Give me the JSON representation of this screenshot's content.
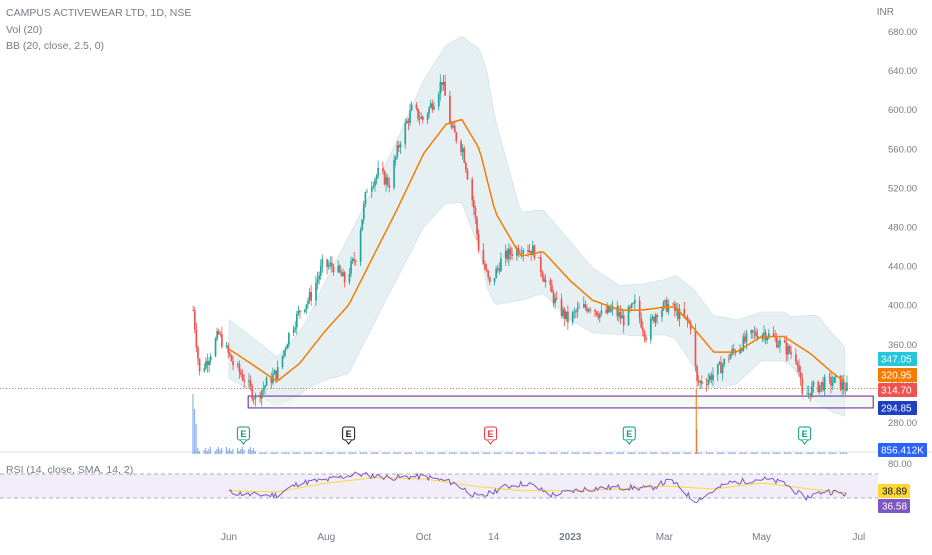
{
  "header": {
    "symbol_title": "CAMPUS ACTIVEWEAR LTD, 1D, NSE",
    "vol_legend": "Vol (20)",
    "bb_legend": "BB (20, close, 2.5, 0)",
    "rsi_legend": "RSI (14, close, SMA, 14, 2)",
    "currency": "INR"
  },
  "colors": {
    "up": "#26a69a",
    "down": "#ef5350",
    "bb_basis": "#f57c00",
    "bb_fill": "#e3eef2",
    "rsi_line": "#7e57c2",
    "rsi_sma": "#fdd835",
    "volume": "#4a7fe0",
    "zone_border": "#6a1b9a"
  },
  "chart_data": {
    "type": "candlestick",
    "title": "CAMPUS ACTIVEWEAR LTD, 1D, NSE",
    "ylim": [
      260,
      700
    ],
    "y_ticks": [
      "280.00",
      "320.00",
      "360.00",
      "400.00",
      "440.00",
      "480.00",
      "520.00",
      "560.00",
      "600.00",
      "640.00",
      "680.00"
    ],
    "x_ticks": [
      "Jun",
      "Aug",
      "Oct",
      "14",
      "2023",
      "Mar",
      "May",
      "Jul"
    ],
    "x_tick_dates": [
      "2022-06-01",
      "2022-08-01",
      "2022-10-01",
      "2022-11-14",
      "2023-01-01",
      "2023-03-01",
      "2023-05-01",
      "2023-07-01"
    ],
    "x_range": [
      "2022-04-30",
      "2023-07-13"
    ],
    "price_path": [
      [
        "2022-05-09",
        395
      ],
      [
        "2022-05-13",
        330
      ],
      [
        "2022-05-18",
        345
      ],
      [
        "2022-05-25",
        370
      ],
      [
        "2022-06-03",
        340
      ],
      [
        "2022-06-10",
        325
      ],
      [
        "2022-06-17",
        305
      ],
      [
        "2022-06-24",
        320
      ],
      [
        "2022-07-01",
        332
      ],
      [
        "2022-07-08",
        370
      ],
      [
        "2022-07-15",
        395
      ],
      [
        "2022-07-22",
        410
      ],
      [
        "2022-07-29",
        440
      ],
      [
        "2022-08-05",
        440
      ],
      [
        "2022-08-12",
        425
      ],
      [
        "2022-08-19",
        450
      ],
      [
        "2022-08-26",
        520
      ],
      [
        "2022-09-02",
        535
      ],
      [
        "2022-09-09",
        525
      ],
      [
        "2022-09-16",
        570
      ],
      [
        "2022-09-23",
        600
      ],
      [
        "2022-09-30",
        590
      ],
      [
        "2022-10-07",
        610
      ],
      [
        "2022-10-12",
        630
      ],
      [
        "2022-10-18",
        580
      ],
      [
        "2022-10-25",
        560
      ],
      [
        "2022-11-01",
        500
      ],
      [
        "2022-11-04",
        460
      ],
      [
        "2022-11-11",
        420
      ],
      [
        "2022-11-18",
        445
      ],
      [
        "2022-11-25",
        455
      ],
      [
        "2022-12-02",
        460
      ],
      [
        "2022-12-09",
        455
      ],
      [
        "2022-12-16",
        425
      ],
      [
        "2022-12-23",
        400
      ],
      [
        "2022-12-30",
        385
      ],
      [
        "2023-01-06",
        395
      ],
      [
        "2023-01-13",
        400
      ],
      [
        "2023-01-20",
        390
      ],
      [
        "2023-01-27",
        395
      ],
      [
        "2023-02-03",
        385
      ],
      [
        "2023-02-10",
        400
      ],
      [
        "2023-02-17",
        370
      ],
      [
        "2023-02-24",
        395
      ],
      [
        "2023-03-03",
        400
      ],
      [
        "2023-03-10",
        390
      ],
      [
        "2023-03-17",
        380
      ],
      [
        "2023-03-21",
        320
      ],
      [
        "2023-03-28",
        325
      ],
      [
        "2023-04-04",
        335
      ],
      [
        "2023-04-11",
        350
      ],
      [
        "2023-04-18",
        360
      ],
      [
        "2023-04-25",
        370
      ],
      [
        "2023-05-02",
        372
      ],
      [
        "2023-05-09",
        365
      ],
      [
        "2023-05-16",
        355
      ],
      [
        "2023-05-23",
        345
      ],
      [
        "2023-05-26",
        305
      ],
      [
        "2023-06-02",
        315
      ],
      [
        "2023-06-09",
        320
      ],
      [
        "2023-06-16",
        322
      ],
      [
        "2023-06-20",
        318
      ],
      [
        "2023-06-23",
        314.7
      ]
    ],
    "basis_path": [
      [
        "2022-06-01",
        355
      ],
      [
        "2022-06-15",
        340
      ],
      [
        "2022-07-01",
        322
      ],
      [
        "2022-07-15",
        340
      ],
      [
        "2022-08-01",
        375
      ],
      [
        "2022-08-15",
        400
      ],
      [
        "2022-09-01",
        455
      ],
      [
        "2022-09-15",
        500
      ],
      [
        "2022-10-01",
        555
      ],
      [
        "2022-10-15",
        585
      ],
      [
        "2022-10-25",
        590
      ],
      [
        "2022-11-05",
        560
      ],
      [
        "2022-11-15",
        495
      ],
      [
        "2022-12-01",
        450
      ],
      [
        "2022-12-15",
        455
      ],
      [
        "2023-01-01",
        425
      ],
      [
        "2023-01-15",
        405
      ],
      [
        "2023-02-01",
        395
      ],
      [
        "2023-02-15",
        395
      ],
      [
        "2023-03-01",
        398
      ],
      [
        "2023-03-08",
        398
      ],
      [
        "2023-03-15",
        385
      ],
      [
        "2023-04-01",
        352
      ],
      [
        "2023-04-15",
        352
      ],
      [
        "2023-05-01",
        368
      ],
      [
        "2023-05-15",
        368
      ],
      [
        "2023-06-01",
        350
      ],
      [
        "2023-06-15",
        330
      ],
      [
        "2023-06-23",
        320.95
      ]
    ],
    "band_width_path": [
      [
        "2022-06-01",
        30
      ],
      [
        "2022-07-01",
        25
      ],
      [
        "2022-07-20",
        35
      ],
      [
        "2022-08-15",
        70
      ],
      [
        "2022-09-10",
        70
      ],
      [
        "2022-10-01",
        75
      ],
      [
        "2022-10-25",
        85
      ],
      [
        "2022-11-10",
        110
      ],
      [
        "2022-12-01",
        45
      ],
      [
        "2023-01-01",
        40
      ],
      [
        "2023-02-01",
        25
      ],
      [
        "2023-03-01",
        28
      ],
      [
        "2023-03-20",
        40
      ],
      [
        "2023-04-10",
        35
      ],
      [
        "2023-05-01",
        25
      ],
      [
        "2023-05-20",
        25
      ],
      [
        "2023-06-05",
        45
      ],
      [
        "2023-06-23",
        35
      ]
    ],
    "rsi_ylim": [
      0,
      100
    ],
    "rsi_y_ticks": [
      "80.00"
    ],
    "rsi_levels": [
      70,
      30
    ],
    "rsi_path": [
      [
        "2022-06-01",
        40
      ],
      [
        "2022-06-15",
        35
      ],
      [
        "2022-07-01",
        35
      ],
      [
        "2022-07-15",
        55
      ],
      [
        "2022-08-01",
        60
      ],
      [
        "2022-08-20",
        70
      ],
      [
        "2022-09-10",
        64
      ],
      [
        "2022-10-01",
        66
      ],
      [
        "2022-10-20",
        55
      ],
      [
        "2022-11-05",
        30
      ],
      [
        "2022-11-20",
        48
      ],
      [
        "2022-12-05",
        55
      ],
      [
        "2022-12-20",
        35
      ],
      [
        "2023-01-10",
        45
      ],
      [
        "2023-02-01",
        48
      ],
      [
        "2023-02-20",
        46
      ],
      [
        "2023-03-05",
        60
      ],
      [
        "2023-03-20",
        25
      ],
      [
        "2023-04-10",
        55
      ],
      [
        "2023-05-01",
        62
      ],
      [
        "2023-05-15",
        55
      ],
      [
        "2023-05-28",
        30
      ],
      [
        "2023-06-10",
        42
      ],
      [
        "2023-06-23",
        36.58
      ]
    ],
    "rsi_sma_path": [
      [
        "2022-06-01",
        42
      ],
      [
        "2022-07-01",
        40
      ],
      [
        "2022-08-01",
        55
      ],
      [
        "2022-09-01",
        64
      ],
      [
        "2022-10-01",
        62
      ],
      [
        "2022-11-01",
        50
      ],
      [
        "2022-12-01",
        42
      ],
      [
        "2023-01-01",
        42
      ],
      [
        "2023-02-01",
        45
      ],
      [
        "2023-03-01",
        50
      ],
      [
        "2023-04-01",
        45
      ],
      [
        "2023-05-01",
        55
      ],
      [
        "2023-06-01",
        45
      ],
      [
        "2023-06-23",
        38.89
      ]
    ],
    "volume_note": "low flat volume with spikes early June 2022 and a spike near 2023-03-21",
    "support_zone": {
      "from": "2022-06-13",
      "to": "2023-07-10",
      "low": 294.85,
      "high": 307
    },
    "reference_line": {
      "from": "2023-03-21",
      "value": 314.7
    },
    "earnings_markers": [
      {
        "date": "2022-06-10",
        "label": "E",
        "style": "green"
      },
      {
        "date": "2022-08-15",
        "label": "E",
        "style": "black"
      },
      {
        "date": "2022-11-12",
        "label": "E",
        "style": "red"
      },
      {
        "date": "2023-02-07",
        "label": "E",
        "style": "green"
      },
      {
        "date": "2023-05-28",
        "label": "E",
        "style": "green"
      }
    ],
    "price_labels": [
      {
        "text": "347.05",
        "value": 347.05,
        "color": "#26c6da"
      },
      {
        "text": "320.95",
        "value": 320.95,
        "color": "#f57c00"
      },
      {
        "text": "314.70",
        "value": 314.7,
        "color": "#ef5350"
      },
      {
        "text": "294.85",
        "value": 294.85,
        "color": "#1e3fbf"
      }
    ],
    "volume_label": {
      "text": "856.412K",
      "color": "#2962ff"
    },
    "rsi_labels": [
      {
        "text": "38.89",
        "value": 38.89,
        "color": "#fdd835",
        "text_color": "#131722"
      },
      {
        "text": "36.58",
        "value": 36.58,
        "color": "#7e57c2",
        "text_color": "#ffffff"
      }
    ]
  }
}
